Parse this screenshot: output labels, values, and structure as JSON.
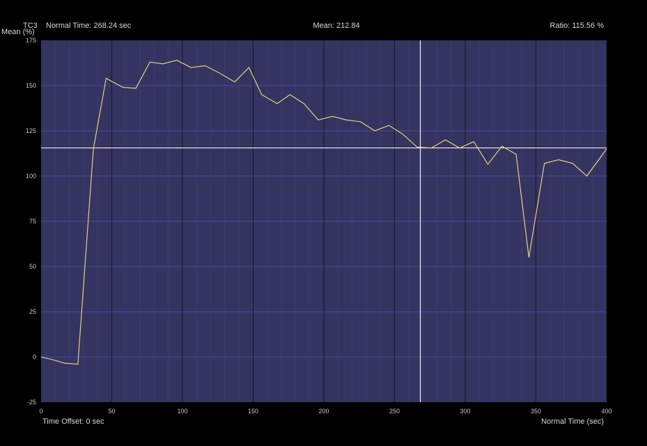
{
  "header": {
    "channel": "TC3",
    "normal_time": "Normal Time: 268.24 sec",
    "mean": "Mean: 212.84",
    "ratio": "Ratio: 115.56 %"
  },
  "footer": {
    "time_offset": "Time Offset: 0 sec"
  },
  "colors": {
    "background": "#000000",
    "plot_background": "#353461",
    "minor_grid": "#4a4aa0",
    "major_grid": "#1a1a36",
    "series_line": "#f0e07a",
    "reference_line": "#f2f2f2",
    "text": "#d8d8d8",
    "tick_text": "#c8c8c8"
  },
  "chart_data": {
    "type": "line",
    "ylabel": "Mean (%)",
    "xlabel": "Normal Time (sec)",
    "xlim": [
      0,
      400
    ],
    "ylim": [
      -25,
      175
    ],
    "x_ticks": [
      0,
      50,
      100,
      150,
      200,
      250,
      300,
      350,
      400
    ],
    "y_ticks": [
      -25,
      0,
      25,
      50,
      75,
      100,
      125,
      150,
      175
    ],
    "x_minor_grid_step": 10,
    "y_grid_step": 25,
    "cursor_x": 268.24,
    "reference_y": 115.56,
    "series": [
      {
        "x": [
          0,
          8,
          17,
          26,
          37,
          46,
          58,
          67,
          77,
          86,
          96,
          106,
          116,
          126,
          137,
          147,
          156,
          167,
          176,
          186,
          196,
          206,
          216,
          226,
          236,
          246,
          256,
          266,
          276,
          286,
          296,
          306,
          316,
          326,
          336,
          345,
          356,
          366,
          376,
          386,
          400
        ],
        "y": [
          0,
          -1.5,
          -3.5,
          -4,
          115,
          154,
          149,
          148.5,
          163,
          162,
          164,
          160,
          161,
          157,
          152,
          160,
          145,
          140,
          145,
          140,
          131,
          133,
          131,
          130,
          125,
          128,
          123,
          116,
          115.5,
          120,
          115.5,
          119,
          106.5,
          116.5,
          112,
          55,
          107,
          109,
          107,
          100,
          115
        ]
      }
    ]
  }
}
